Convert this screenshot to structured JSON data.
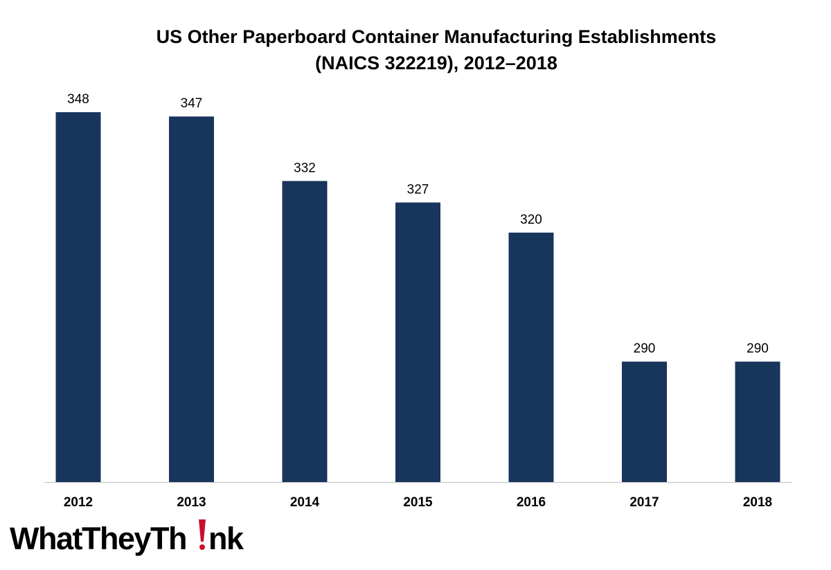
{
  "chart_data": {
    "type": "bar",
    "title_line1": "US Other Paperboard Container Manufacturing Establishments",
    "title_line2": "(NAICS 322219), 2012–2018",
    "xlabel": "",
    "ylabel": "",
    "categories": [
      "2012",
      "2013",
      "2014",
      "2015",
      "2016",
      "2017",
      "2018"
    ],
    "values": [
      348,
      347,
      332,
      327,
      320,
      290,
      290
    ],
    "ylim": [
      262,
      348
    ],
    "grid": false,
    "legend": "none",
    "bar_color": "#18355c",
    "axis_color": "#bfbfbf"
  },
  "logo": {
    "text": "WhatTheyThink",
    "accent_color": "#c8102e"
  }
}
